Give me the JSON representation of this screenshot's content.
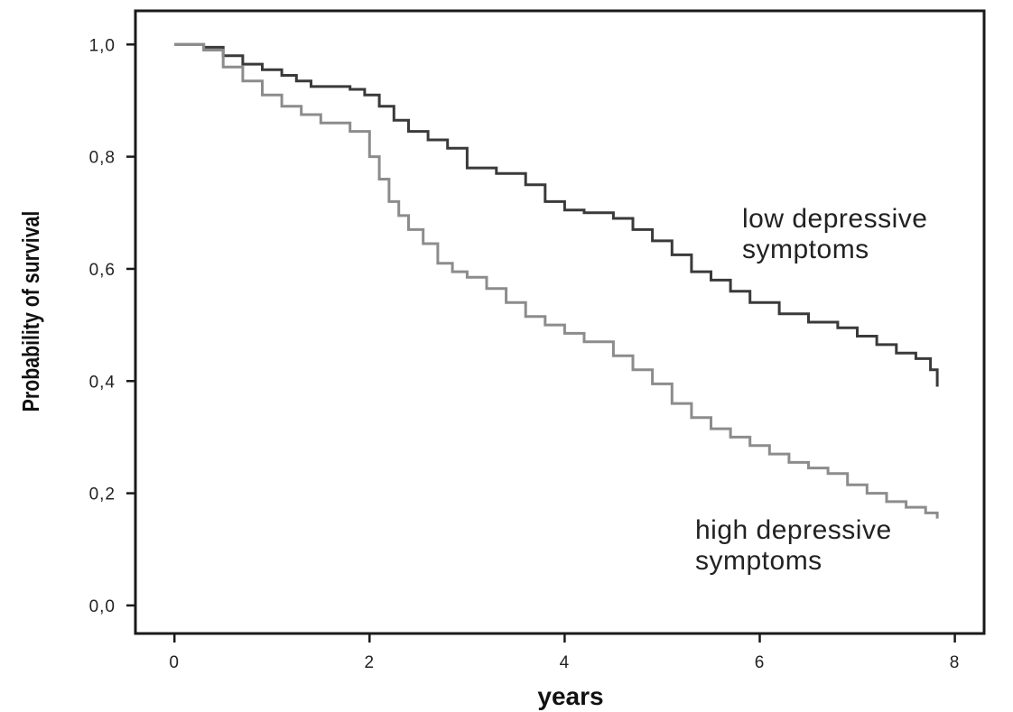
{
  "chart_data": {
    "type": "line",
    "title": "",
    "xlabel": "years",
    "ylabel": "Probability of survival",
    "xlim": [
      -0.4,
      8.3
    ],
    "ylim": [
      -0.05,
      1.06
    ],
    "x_ticks": [
      0,
      2,
      4,
      6,
      8
    ],
    "x_tick_labels": [
      "0",
      "2",
      "4",
      "6",
      "8"
    ],
    "y_ticks": [
      0,
      0.2,
      0.4,
      0.6,
      0.8,
      1.0
    ],
    "y_tick_labels": [
      "0,0",
      "0,2",
      "0,4",
      "0,6",
      "0,8",
      "1,0"
    ],
    "grid": false,
    "legend": "none",
    "annotations": [
      {
        "lines": [
          "low depressive",
          "symptoms"
        ],
        "series": "low"
      },
      {
        "lines": [
          "high depressive",
          "symptoms"
        ],
        "series": "high"
      }
    ],
    "series": [
      {
        "key": "low",
        "step": true,
        "color": "#3a3a3a",
        "x": [
          0,
          0.3,
          0.5,
          0.7,
          0.9,
          1.1,
          1.25,
          1.4,
          1.6,
          1.8,
          1.95,
          2.1,
          2.25,
          2.4,
          2.6,
          2.8,
          3.0,
          3.3,
          3.6,
          3.8,
          4.0,
          4.2,
          4.5,
          4.7,
          4.9,
          5.1,
          5.3,
          5.5,
          5.7,
          5.9,
          6.2,
          6.5,
          6.8,
          7.0,
          7.2,
          7.4,
          7.6,
          7.75,
          7.82
        ],
        "y": [
          1.0,
          0.995,
          0.98,
          0.965,
          0.955,
          0.945,
          0.935,
          0.925,
          0.925,
          0.92,
          0.91,
          0.89,
          0.865,
          0.845,
          0.83,
          0.815,
          0.78,
          0.77,
          0.75,
          0.72,
          0.705,
          0.7,
          0.69,
          0.67,
          0.65,
          0.625,
          0.595,
          0.58,
          0.56,
          0.54,
          0.52,
          0.505,
          0.495,
          0.48,
          0.465,
          0.45,
          0.44,
          0.42,
          0.39
        ]
      },
      {
        "key": "high",
        "step": true,
        "color": "#8c8c8c",
        "x": [
          0,
          0.3,
          0.5,
          0.7,
          0.9,
          1.1,
          1.3,
          1.5,
          1.8,
          2.0,
          2.1,
          2.2,
          2.3,
          2.4,
          2.55,
          2.7,
          2.85,
          3.0,
          3.2,
          3.4,
          3.6,
          3.8,
          4.0,
          4.2,
          4.5,
          4.7,
          4.9,
          5.1,
          5.3,
          5.5,
          5.7,
          5.9,
          6.1,
          6.3,
          6.5,
          6.7,
          6.9,
          7.1,
          7.3,
          7.5,
          7.7,
          7.82
        ],
        "y": [
          1.0,
          0.99,
          0.96,
          0.935,
          0.91,
          0.89,
          0.875,
          0.86,
          0.845,
          0.8,
          0.76,
          0.72,
          0.695,
          0.67,
          0.645,
          0.61,
          0.595,
          0.585,
          0.565,
          0.54,
          0.515,
          0.5,
          0.485,
          0.47,
          0.445,
          0.42,
          0.395,
          0.36,
          0.335,
          0.315,
          0.3,
          0.285,
          0.27,
          0.255,
          0.245,
          0.235,
          0.215,
          0.2,
          0.185,
          0.175,
          0.165,
          0.155
        ]
      }
    ]
  }
}
